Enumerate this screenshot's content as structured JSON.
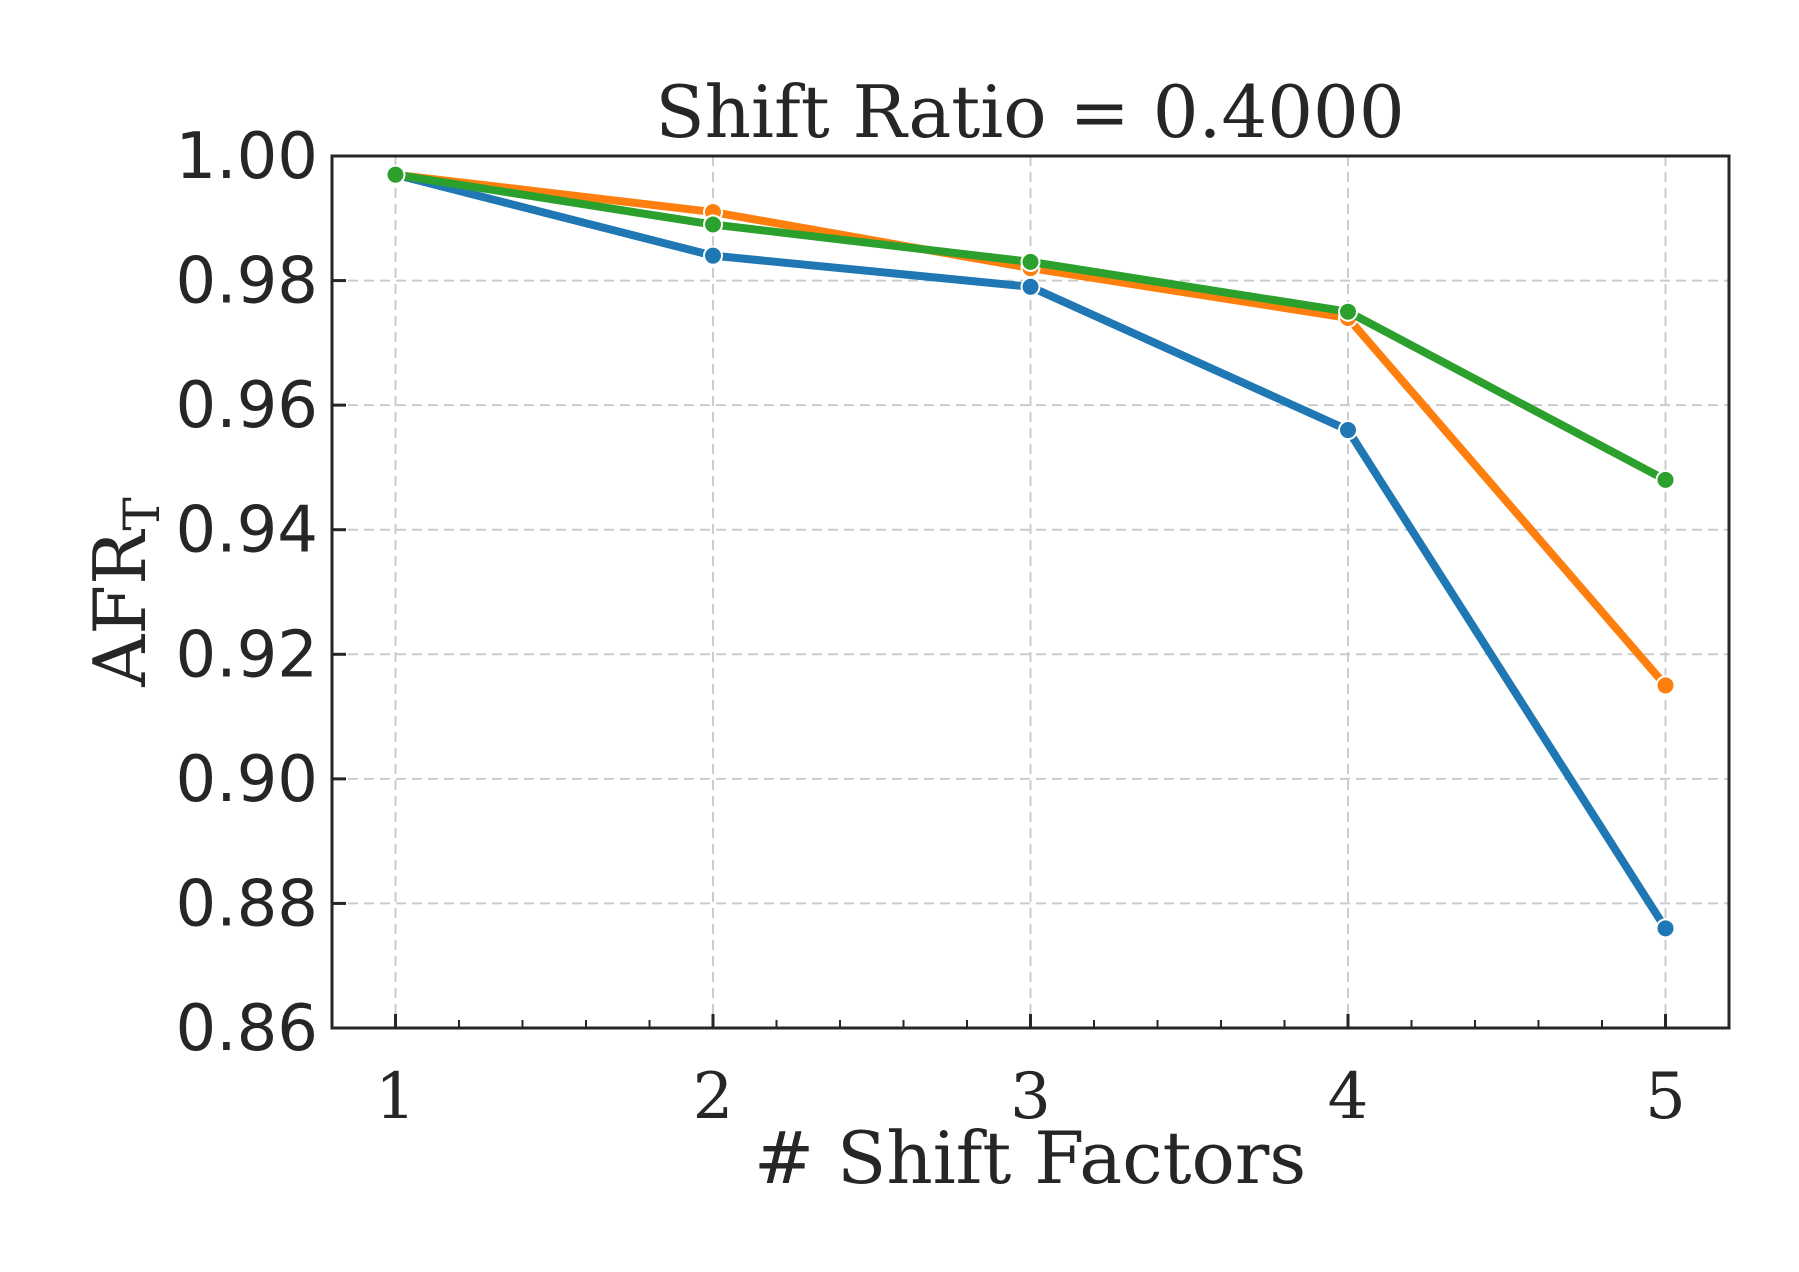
{
  "chart_data": {
    "type": "line",
    "title": "Shift Ratio = 0.4000",
    "xlabel": "# Shift Factors",
    "ylabel_main": "AFR",
    "ylabel_sub": "T",
    "x": [
      1,
      2,
      3,
      4,
      5
    ],
    "xticks": [
      "1",
      "2",
      "3",
      "4",
      "5"
    ],
    "xlim": [
      0.8,
      5.2
    ],
    "ylim": [
      0.86,
      1.0
    ],
    "yticks": [
      "1.00",
      "0.98",
      "0.96",
      "0.94",
      "0.92",
      "0.90",
      "0.88",
      "0.86"
    ],
    "grid": true,
    "series": [
      {
        "color": "#1f77b4",
        "values": [
          0.997,
          0.984,
          0.979,
          0.956,
          0.876
        ]
      },
      {
        "color": "#ff7f0e",
        "values": [
          0.997,
          0.991,
          0.982,
          0.974,
          0.915
        ]
      },
      {
        "color": "#2ca02c",
        "values": [
          0.997,
          0.989,
          0.983,
          0.975,
          0.948
        ]
      }
    ]
  }
}
